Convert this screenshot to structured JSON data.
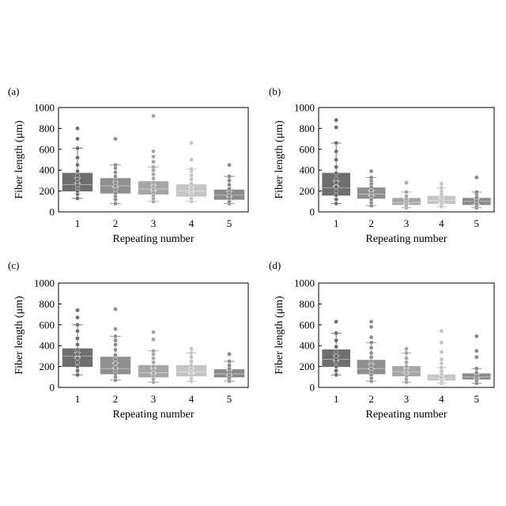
{
  "colors": {
    "box_1": "#6e6e6e",
    "box_2": "#8f8f8f",
    "box_3": "#a6a6a6",
    "box_4": "#c4c4c4",
    "box_5": "#8a8a8a",
    "axes": "#000000"
  },
  "chart_data": [
    {
      "type": "box",
      "panel_label": "(a)",
      "xlabel": "Repeating number",
      "ylabel": "Fiber length (μm)",
      "categories": [
        "1",
        "2",
        "3",
        "4",
        "5"
      ],
      "ylim": [
        0,
        1000
      ],
      "yticks": [
        0,
        200,
        400,
        600,
        800,
        1000
      ],
      "grid": false,
      "boxes": [
        {
          "min": 130,
          "q1": 200,
          "median": 260,
          "q3": 370,
          "max": 610,
          "mean": 300,
          "points": [
            130,
            170,
            200,
            230,
            260,
            290,
            320,
            350,
            390,
            450,
            520,
            610,
            700,
            800
          ]
        },
        {
          "min": 80,
          "q1": 180,
          "median": 250,
          "q3": 320,
          "max": 450,
          "mean": 260,
          "points": [
            80,
            120,
            150,
            180,
            210,
            250,
            280,
            310,
            340,
            380,
            420,
            450,
            700
          ]
        },
        {
          "min": 100,
          "q1": 170,
          "median": 220,
          "q3": 290,
          "max": 430,
          "mean": 230,
          "points": [
            100,
            130,
            160,
            190,
            220,
            250,
            280,
            320,
            360,
            400,
            430,
            480,
            530,
            580,
            920
          ]
        },
        {
          "min": 100,
          "q1": 150,
          "median": 200,
          "q3": 260,
          "max": 410,
          "mean": 210,
          "points": [
            100,
            130,
            160,
            190,
            210,
            240,
            270,
            310,
            350,
            390,
            410,
            500,
            660
          ]
        },
        {
          "min": 80,
          "q1": 120,
          "median": 160,
          "q3": 210,
          "max": 340,
          "mean": 170,
          "points": [
            80,
            100,
            130,
            160,
            190,
            220,
            260,
            300,
            340,
            450
          ]
        }
      ]
    },
    {
      "type": "box",
      "panel_label": "(b)",
      "xlabel": "Repeating number",
      "ylabel": "Fiber length (μm)",
      "categories": [
        "1",
        "2",
        "3",
        "4",
        "5"
      ],
      "ylim": [
        0,
        1000
      ],
      "yticks": [
        0,
        200,
        400,
        600,
        800,
        1000
      ],
      "grid": false,
      "boxes": [
        {
          "min": 80,
          "q1": 160,
          "median": 230,
          "q3": 370,
          "max": 660,
          "mean": 270,
          "points": [
            80,
            120,
            160,
            200,
            240,
            280,
            320,
            370,
            430,
            500,
            580,
            660,
            810,
            880
          ]
        },
        {
          "min": 60,
          "q1": 130,
          "median": 170,
          "q3": 230,
          "max": 330,
          "mean": 180,
          "points": [
            60,
            90,
            120,
            150,
            180,
            210,
            240,
            270,
            300,
            330,
            390
          ]
        },
        {
          "min": 40,
          "q1": 70,
          "median": 90,
          "q3": 130,
          "max": 190,
          "mean": 100,
          "points": [
            40,
            60,
            80,
            100,
            120,
            150,
            190,
            280
          ]
        },
        {
          "min": 50,
          "q1": 80,
          "median": 110,
          "q3": 150,
          "max": 230,
          "mean": 110,
          "points": [
            50,
            70,
            90,
            110,
            140,
            170,
            200,
            230,
            270
          ]
        },
        {
          "min": 40,
          "q1": 70,
          "median": 100,
          "q3": 130,
          "max": 190,
          "mean": 100,
          "points": [
            40,
            60,
            80,
            110,
            140,
            170,
            190,
            330
          ]
        }
      ]
    },
    {
      "type": "box",
      "panel_label": "(c)",
      "xlabel": "Repeating number",
      "ylabel": "Fiber length (μm)",
      "categories": [
        "1",
        "2",
        "3",
        "4",
        "5"
      ],
      "ylim": [
        0,
        1000
      ],
      "yticks": [
        0,
        200,
        400,
        600,
        800,
        1000
      ],
      "grid": false,
      "boxes": [
        {
          "min": 120,
          "q1": 200,
          "median": 300,
          "q3": 370,
          "max": 600,
          "mean": 310,
          "points": [
            120,
            160,
            200,
            240,
            280,
            320,
            360,
            410,
            470,
            540,
            600,
            670,
            740
          ]
        },
        {
          "min": 70,
          "q1": 130,
          "median": 180,
          "q3": 290,
          "max": 490,
          "mean": 210,
          "points": [
            70,
            100,
            130,
            160,
            190,
            230,
            270,
            310,
            360,
            410,
            450,
            490,
            560,
            750
          ]
        },
        {
          "min": 50,
          "q1": 100,
          "median": 140,
          "q3": 210,
          "max": 350,
          "mean": 160,
          "points": [
            50,
            80,
            110,
            140,
            170,
            200,
            240,
            280,
            320,
            350,
            460,
            530
          ]
        },
        {
          "min": 60,
          "q1": 110,
          "median": 150,
          "q3": 210,
          "max": 330,
          "mean": 160,
          "points": [
            60,
            90,
            120,
            150,
            180,
            210,
            250,
            290,
            330,
            370
          ]
        },
        {
          "min": 60,
          "q1": 100,
          "median": 130,
          "q3": 170,
          "max": 250,
          "mean": 140,
          "points": [
            60,
            80,
            100,
            120,
            150,
            180,
            210,
            250,
            320
          ]
        }
      ]
    },
    {
      "type": "box",
      "panel_label": "(d)",
      "xlabel": "Repeating number",
      "ylabel": "Fiber length (μm)",
      "categories": [
        "1",
        "2",
        "3",
        "4",
        "5"
      ],
      "ylim": [
        0,
        1000
      ],
      "yticks": [
        0,
        200,
        400,
        600,
        800,
        1000
      ],
      "grid": false,
      "boxes": [
        {
          "min": 120,
          "q1": 200,
          "median": 270,
          "q3": 360,
          "max": 520,
          "mean": 280,
          "points": [
            120,
            160,
            200,
            240,
            270,
            300,
            340,
            390,
            450,
            520,
            630
          ]
        },
        {
          "min": 60,
          "q1": 130,
          "median": 180,
          "q3": 260,
          "max": 430,
          "mean": 200,
          "points": [
            60,
            90,
            120,
            150,
            180,
            210,
            250,
            290,
            330,
            380,
            430,
            480,
            580,
            630
          ]
        },
        {
          "min": 50,
          "q1": 110,
          "median": 150,
          "q3": 200,
          "max": 330,
          "mean": 160,
          "points": [
            50,
            80,
            110,
            140,
            170,
            200,
            240,
            280,
            330,
            370
          ]
        },
        {
          "min": 40,
          "q1": 70,
          "median": 90,
          "q3": 120,
          "max": 190,
          "mean": 100,
          "points": [
            40,
            60,
            80,
            100,
            130,
            160,
            190,
            230,
            270,
            340,
            430,
            540
          ]
        },
        {
          "min": 40,
          "q1": 80,
          "median": 100,
          "q3": 130,
          "max": 180,
          "mean": 110,
          "points": [
            40,
            70,
            90,
            110,
            140,
            180,
            290,
            350,
            490
          ]
        }
      ]
    }
  ]
}
